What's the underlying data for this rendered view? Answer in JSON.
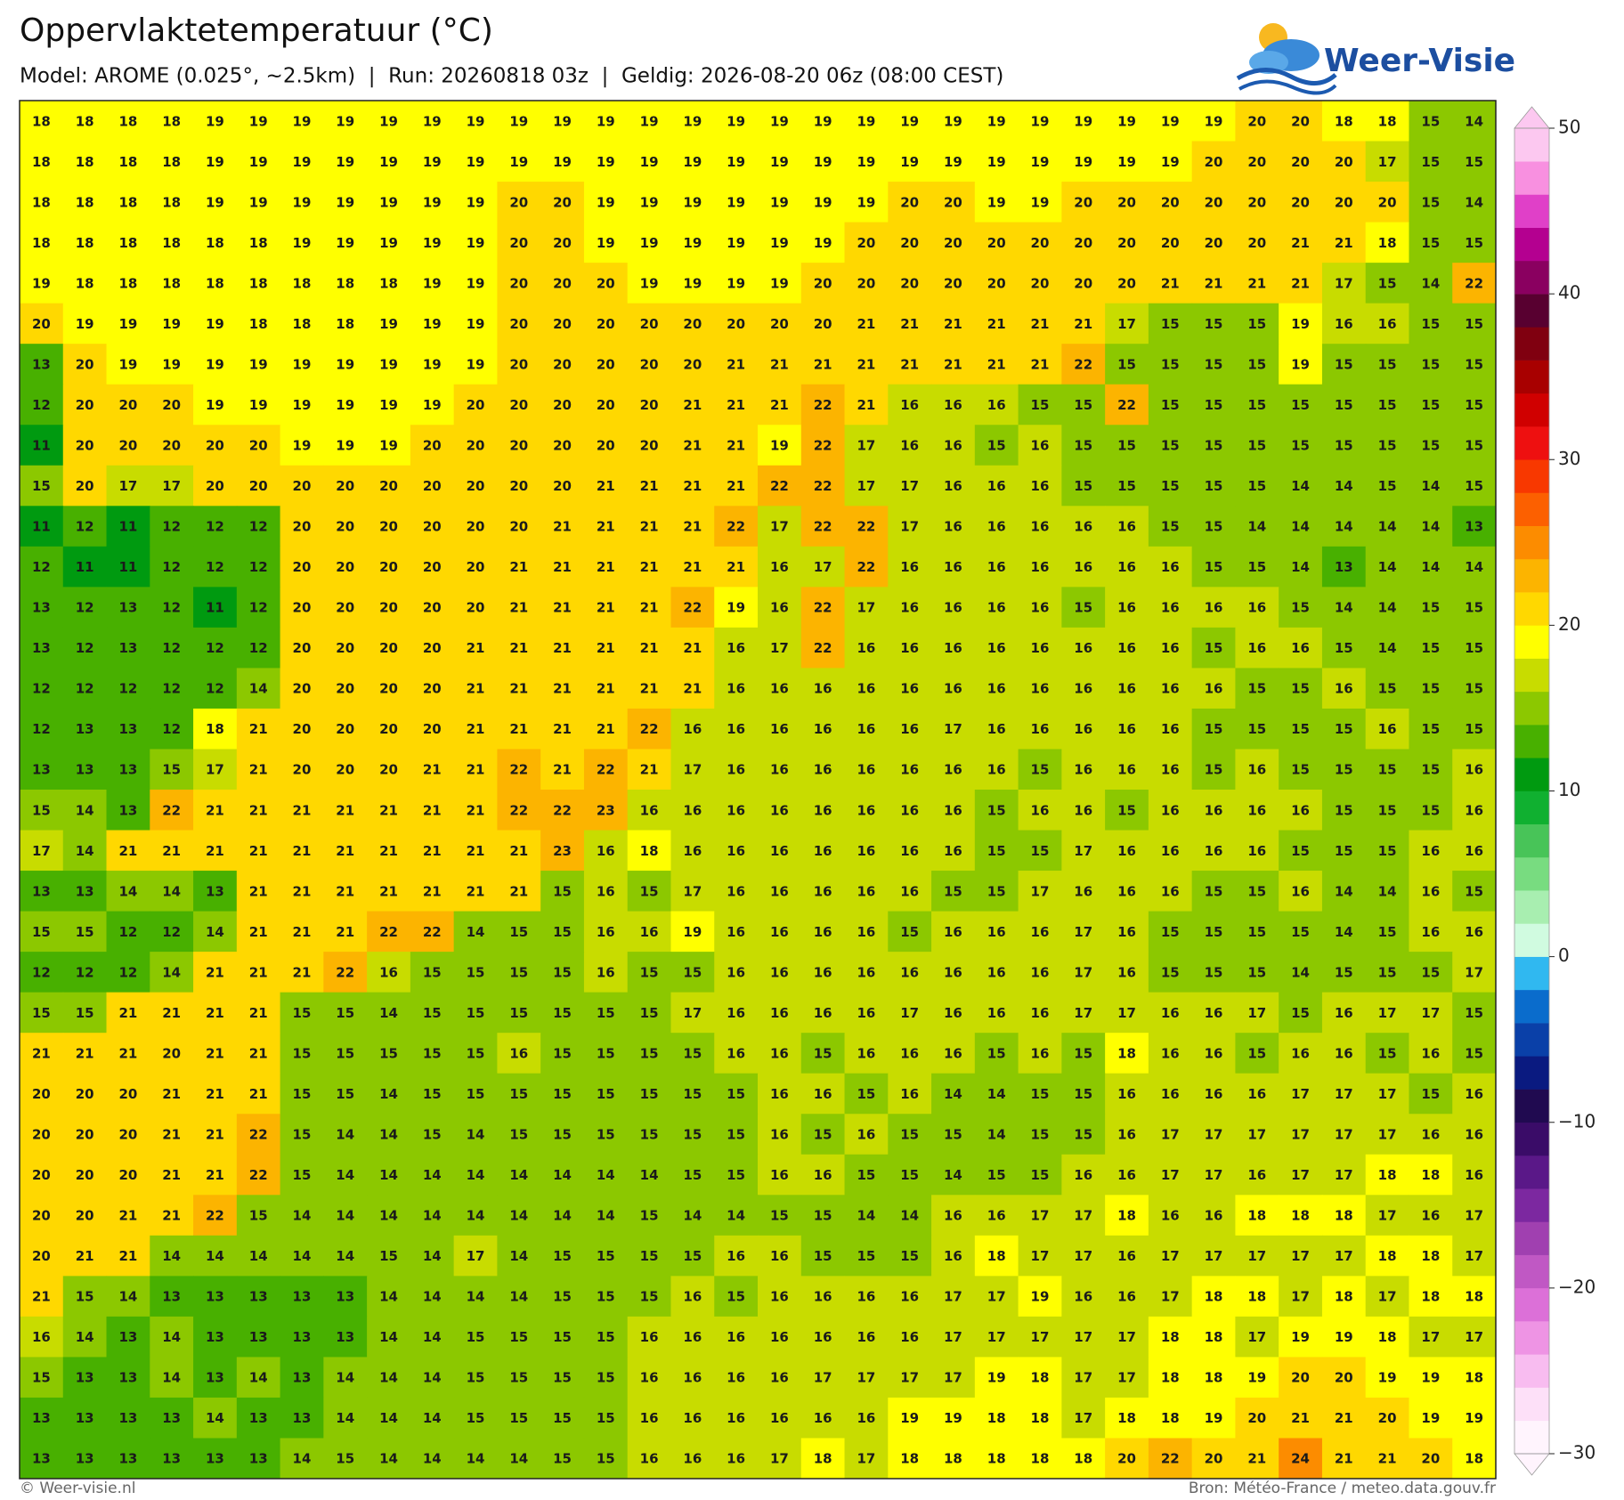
{
  "header": {
    "title": "Oppervlaktetemperatuur (°C)",
    "subtitle": "Model: AROME (0.025°, ~2.5km)  |  Run: 20260818 03z  |  Geldig: 2026-08-20 06z (08:00 CEST)"
  },
  "logo": "Weer-Visie",
  "map": {
    "rows": [
      [
        18,
        18,
        18,
        18,
        19,
        19,
        19,
        19,
        19,
        19,
        19,
        19,
        19,
        19,
        19,
        19,
        19,
        19,
        19,
        19,
        19,
        19,
        19,
        19,
        19,
        19,
        19,
        19,
        20,
        20,
        18,
        18,
        15,
        14
      ],
      [
        18,
        18,
        18,
        18,
        19,
        19,
        19,
        19,
        19,
        19,
        19,
        19,
        19,
        19,
        19,
        19,
        19,
        19,
        19,
        19,
        19,
        19,
        19,
        19,
        19,
        19,
        19,
        20,
        20,
        20,
        20,
        17,
        15,
        15
      ],
      [
        18,
        18,
        18,
        18,
        19,
        19,
        19,
        19,
        19,
        19,
        19,
        20,
        20,
        19,
        19,
        19,
        19,
        19,
        19,
        19,
        20,
        20,
        19,
        19,
        20,
        20,
        20,
        20,
        20,
        20,
        20,
        20,
        15,
        14
      ],
      [
        18,
        18,
        18,
        18,
        18,
        18,
        19,
        19,
        19,
        19,
        19,
        20,
        20,
        19,
        19,
        19,
        19,
        19,
        19,
        20,
        20,
        20,
        20,
        20,
        20,
        20,
        20,
        20,
        20,
        21,
        21,
        18,
        15,
        15
      ],
      [
        19,
        18,
        18,
        18,
        18,
        18,
        18,
        18,
        18,
        19,
        19,
        20,
        20,
        20,
        19,
        19,
        19,
        19,
        20,
        20,
        20,
        20,
        20,
        20,
        20,
        20,
        21,
        21,
        21,
        21,
        17,
        15,
        14,
        22
      ],
      [
        20,
        19,
        19,
        19,
        19,
        18,
        18,
        18,
        19,
        19,
        19,
        20,
        20,
        20,
        20,
        20,
        20,
        20,
        20,
        21,
        21,
        21,
        21,
        21,
        21,
        17,
        15,
        15,
        15,
        19,
        16,
        16,
        15,
        15
      ],
      [
        13,
        20,
        19,
        19,
        19,
        19,
        19,
        19,
        19,
        19,
        19,
        20,
        20,
        20,
        20,
        20,
        21,
        21,
        21,
        21,
        21,
        21,
        21,
        21,
        22,
        15,
        15,
        15,
        15,
        19,
        15,
        15,
        15,
        15
      ],
      [
        12,
        20,
        20,
        20,
        19,
        19,
        19,
        19,
        19,
        19,
        20,
        20,
        20,
        20,
        20,
        21,
        21,
        21,
        22,
        21,
        16,
        16,
        16,
        15,
        15,
        22,
        15,
        15,
        15,
        15,
        15,
        15,
        15,
        15
      ],
      [
        11,
        20,
        20,
        20,
        20,
        20,
        19,
        19,
        19,
        20,
        20,
        20,
        20,
        20,
        20,
        21,
        21,
        19,
        22,
        17,
        16,
        16,
        15,
        16,
        15,
        15,
        15,
        15,
        15,
        15,
        15,
        15,
        15,
        15
      ],
      [
        15,
        20,
        17,
        17,
        20,
        20,
        20,
        20,
        20,
        20,
        20,
        20,
        20,
        21,
        21,
        21,
        21,
        22,
        22,
        17,
        17,
        16,
        16,
        16,
        15,
        15,
        15,
        15,
        15,
        14,
        14,
        15,
        14,
        15
      ],
      [
        11,
        12,
        11,
        12,
        12,
        12,
        20,
        20,
        20,
        20,
        20,
        20,
        21,
        21,
        21,
        21,
        22,
        17,
        22,
        22,
        17,
        16,
        16,
        16,
        16,
        16,
        15,
        15,
        14,
        14,
        14,
        14,
        14,
        13
      ],
      [
        12,
        11,
        11,
        12,
        12,
        12,
        20,
        20,
        20,
        20,
        20,
        21,
        21,
        21,
        21,
        21,
        21,
        16,
        17,
        22,
        16,
        16,
        16,
        16,
        16,
        16,
        16,
        15,
        15,
        14,
        13,
        14,
        14,
        14
      ],
      [
        13,
        12,
        13,
        12,
        11,
        12,
        20,
        20,
        20,
        20,
        20,
        21,
        21,
        21,
        21,
        22,
        19,
        16,
        22,
        17,
        16,
        16,
        16,
        16,
        15,
        16,
        16,
        16,
        16,
        15,
        14,
        14,
        15,
        15
      ],
      [
        13,
        12,
        13,
        12,
        12,
        12,
        20,
        20,
        20,
        20,
        21,
        21,
        21,
        21,
        21,
        21,
        16,
        17,
        22,
        16,
        16,
        16,
        16,
        16,
        16,
        16,
        16,
        15,
        16,
        16,
        15,
        14,
        15,
        15
      ],
      [
        12,
        12,
        12,
        12,
        12,
        14,
        20,
        20,
        20,
        20,
        21,
        21,
        21,
        21,
        21,
        21,
        16,
        16,
        16,
        16,
        16,
        16,
        16,
        16,
        16,
        16,
        16,
        16,
        15,
        15,
        16,
        15,
        15,
        15
      ],
      [
        12,
        13,
        13,
        12,
        18,
        21,
        20,
        20,
        20,
        20,
        21,
        21,
        21,
        21,
        22,
        16,
        16,
        16,
        16,
        16,
        16,
        17,
        16,
        16,
        16,
        16,
        16,
        15,
        15,
        15,
        15,
        16,
        15,
        15
      ],
      [
        13,
        13,
        13,
        15,
        17,
        21,
        20,
        20,
        20,
        21,
        21,
        22,
        21,
        22,
        21,
        17,
        16,
        16,
        16,
        16,
        16,
        16,
        16,
        15,
        16,
        16,
        16,
        15,
        16,
        15,
        15,
        15,
        15,
        16
      ],
      [
        15,
        14,
        13,
        22,
        21,
        21,
        21,
        21,
        21,
        21,
        21,
        22,
        22,
        23,
        16,
        16,
        16,
        16,
        16,
        16,
        16,
        16,
        15,
        16,
        16,
        15,
        16,
        16,
        16,
        16,
        15,
        15,
        15,
        16
      ],
      [
        17,
        14,
        21,
        21,
        21,
        21,
        21,
        21,
        21,
        21,
        21,
        21,
        23,
        16,
        18,
        16,
        16,
        16,
        16,
        16,
        16,
        16,
        15,
        15,
        17,
        16,
        16,
        16,
        16,
        15,
        15,
        15,
        16,
        16
      ],
      [
        13,
        13,
        14,
        14,
        13,
        21,
        21,
        21,
        21,
        21,
        21,
        21,
        15,
        16,
        15,
        17,
        16,
        16,
        16,
        16,
        16,
        15,
        15,
        17,
        16,
        16,
        16,
        15,
        15,
        16,
        14,
        14,
        16,
        15
      ],
      [
        15,
        15,
        12,
        12,
        14,
        21,
        21,
        21,
        22,
        22,
        14,
        15,
        15,
        16,
        16,
        19,
        16,
        16,
        16,
        16,
        15,
        16,
        16,
        16,
        17,
        16,
        15,
        15,
        15,
        15,
        14,
        15,
        16,
        16
      ],
      [
        12,
        12,
        12,
        14,
        21,
        21,
        21,
        22,
        16,
        15,
        15,
        15,
        15,
        16,
        15,
        15,
        16,
        16,
        16,
        16,
        16,
        16,
        16,
        16,
        17,
        16,
        15,
        15,
        15,
        14,
        15,
        15,
        15,
        17
      ],
      [
        15,
        15,
        21,
        21,
        21,
        21,
        15,
        15,
        14,
        15,
        15,
        15,
        15,
        15,
        15,
        17,
        16,
        16,
        16,
        16,
        17,
        16,
        16,
        16,
        17,
        17,
        16,
        16,
        17,
        15,
        16,
        17,
        17,
        15
      ],
      [
        21,
        21,
        21,
        20,
        21,
        21,
        15,
        15,
        15,
        15,
        15,
        16,
        15,
        15,
        15,
        15,
        16,
        16,
        15,
        16,
        16,
        16,
        15,
        16,
        15,
        18,
        16,
        16,
        15,
        16,
        16,
        15,
        16,
        15
      ],
      [
        20,
        20,
        20,
        21,
        21,
        21,
        15,
        15,
        14,
        15,
        15,
        15,
        15,
        15,
        15,
        15,
        15,
        16,
        16,
        15,
        16,
        14,
        14,
        15,
        15,
        16,
        16,
        16,
        16,
        17,
        17,
        17,
        15,
        16
      ],
      [
        20,
        20,
        20,
        21,
        21,
        22,
        15,
        14,
        14,
        15,
        14,
        15,
        15,
        15,
        15,
        15,
        15,
        16,
        15,
        16,
        15,
        15,
        14,
        15,
        15,
        16,
        17,
        17,
        17,
        17,
        17,
        17,
        16,
        16
      ],
      [
        20,
        20,
        20,
        21,
        21,
        22,
        15,
        14,
        14,
        14,
        14,
        14,
        14,
        14,
        14,
        15,
        15,
        16,
        16,
        15,
        15,
        14,
        15,
        15,
        16,
        16,
        17,
        17,
        16,
        17,
        17,
        18,
        18,
        16
      ],
      [
        20,
        20,
        21,
        21,
        22,
        15,
        14,
        14,
        14,
        14,
        14,
        14,
        14,
        14,
        15,
        14,
        14,
        15,
        15,
        14,
        14,
        16,
        16,
        17,
        17,
        18,
        16,
        16,
        18,
        18,
        18,
        17,
        16,
        17
      ],
      [
        20,
        21,
        21,
        14,
        14,
        14,
        14,
        14,
        15,
        14,
        17,
        14,
        15,
        15,
        15,
        15,
        16,
        16,
        15,
        15,
        15,
        16,
        18,
        17,
        17,
        16,
        17,
        17,
        17,
        17,
        17,
        18,
        18,
        17
      ],
      [
        21,
        15,
        14,
        13,
        13,
        13,
        13,
        13,
        14,
        14,
        14,
        14,
        15,
        15,
        15,
        16,
        15,
        16,
        16,
        16,
        16,
        17,
        17,
        19,
        16,
        16,
        17,
        18,
        18,
        17,
        18,
        17,
        18,
        18
      ],
      [
        16,
        14,
        13,
        14,
        13,
        13,
        13,
        13,
        14,
        14,
        15,
        15,
        15,
        15,
        16,
        16,
        16,
        16,
        16,
        16,
        16,
        17,
        17,
        17,
        17,
        17,
        18,
        18,
        17,
        19,
        19,
        18,
        17,
        17
      ],
      [
        15,
        13,
        13,
        14,
        13,
        14,
        13,
        14,
        14,
        14,
        15,
        15,
        15,
        15,
        16,
        16,
        16,
        16,
        17,
        17,
        17,
        17,
        19,
        18,
        17,
        17,
        18,
        18,
        19,
        20,
        20,
        19,
        19,
        18
      ],
      [
        13,
        13,
        13,
        13,
        14,
        13,
        13,
        14,
        14,
        14,
        15,
        15,
        15,
        15,
        16,
        16,
        16,
        16,
        16,
        16,
        19,
        19,
        18,
        18,
        17,
        18,
        18,
        19,
        20,
        21,
        21,
        20,
        19,
        19
      ],
      [
        13,
        13,
        13,
        13,
        13,
        13,
        14,
        15,
        14,
        14,
        14,
        14,
        15,
        15,
        16,
        16,
        16,
        17,
        18,
        17,
        18,
        18,
        18,
        18,
        18,
        20,
        22,
        20,
        21,
        24,
        21,
        21,
        20,
        18
      ]
    ]
  },
  "colorbar": {
    "lim": [
      -30,
      50
    ],
    "ticks": [
      {
        "value": -30,
        "label": "−30"
      },
      {
        "value": -20,
        "label": "−20"
      },
      {
        "value": -10,
        "label": "−10"
      },
      0,
      10,
      20,
      30,
      40,
      50
    ],
    "colors": [
      "#fff4fd",
      "#fde0f8",
      "#f8bcf0",
      "#ee94e4",
      "#dc70d8",
      "#c058c4",
      "#a040b0",
      "#7c28a0",
      "#5a1888",
      "#3a0c68",
      "#200a50",
      "#0a1a80",
      "#0a40a8",
      "#0a6ccc",
      "#30b8f0",
      "#d0fbe0",
      "#a8eeb0",
      "#78dc80",
      "#48c458",
      "#10b030",
      "#009a10",
      "#48b000",
      "#8cc800",
      "#c8dc00",
      "#ffff00",
      "#ffd800",
      "#fcb400",
      "#fc8c00",
      "#fc6000",
      "#f83800",
      "#ee1010",
      "#d00000",
      "#a80000",
      "#800010",
      "#580030",
      "#8a0060",
      "#b40090",
      "#e040c8",
      "#f890e0",
      "#fcc8f0"
    ]
  },
  "footer": {
    "left": "© Weer-visie.nl",
    "right": "Bron: Météo-France / meteo.data.gouv.fr"
  }
}
